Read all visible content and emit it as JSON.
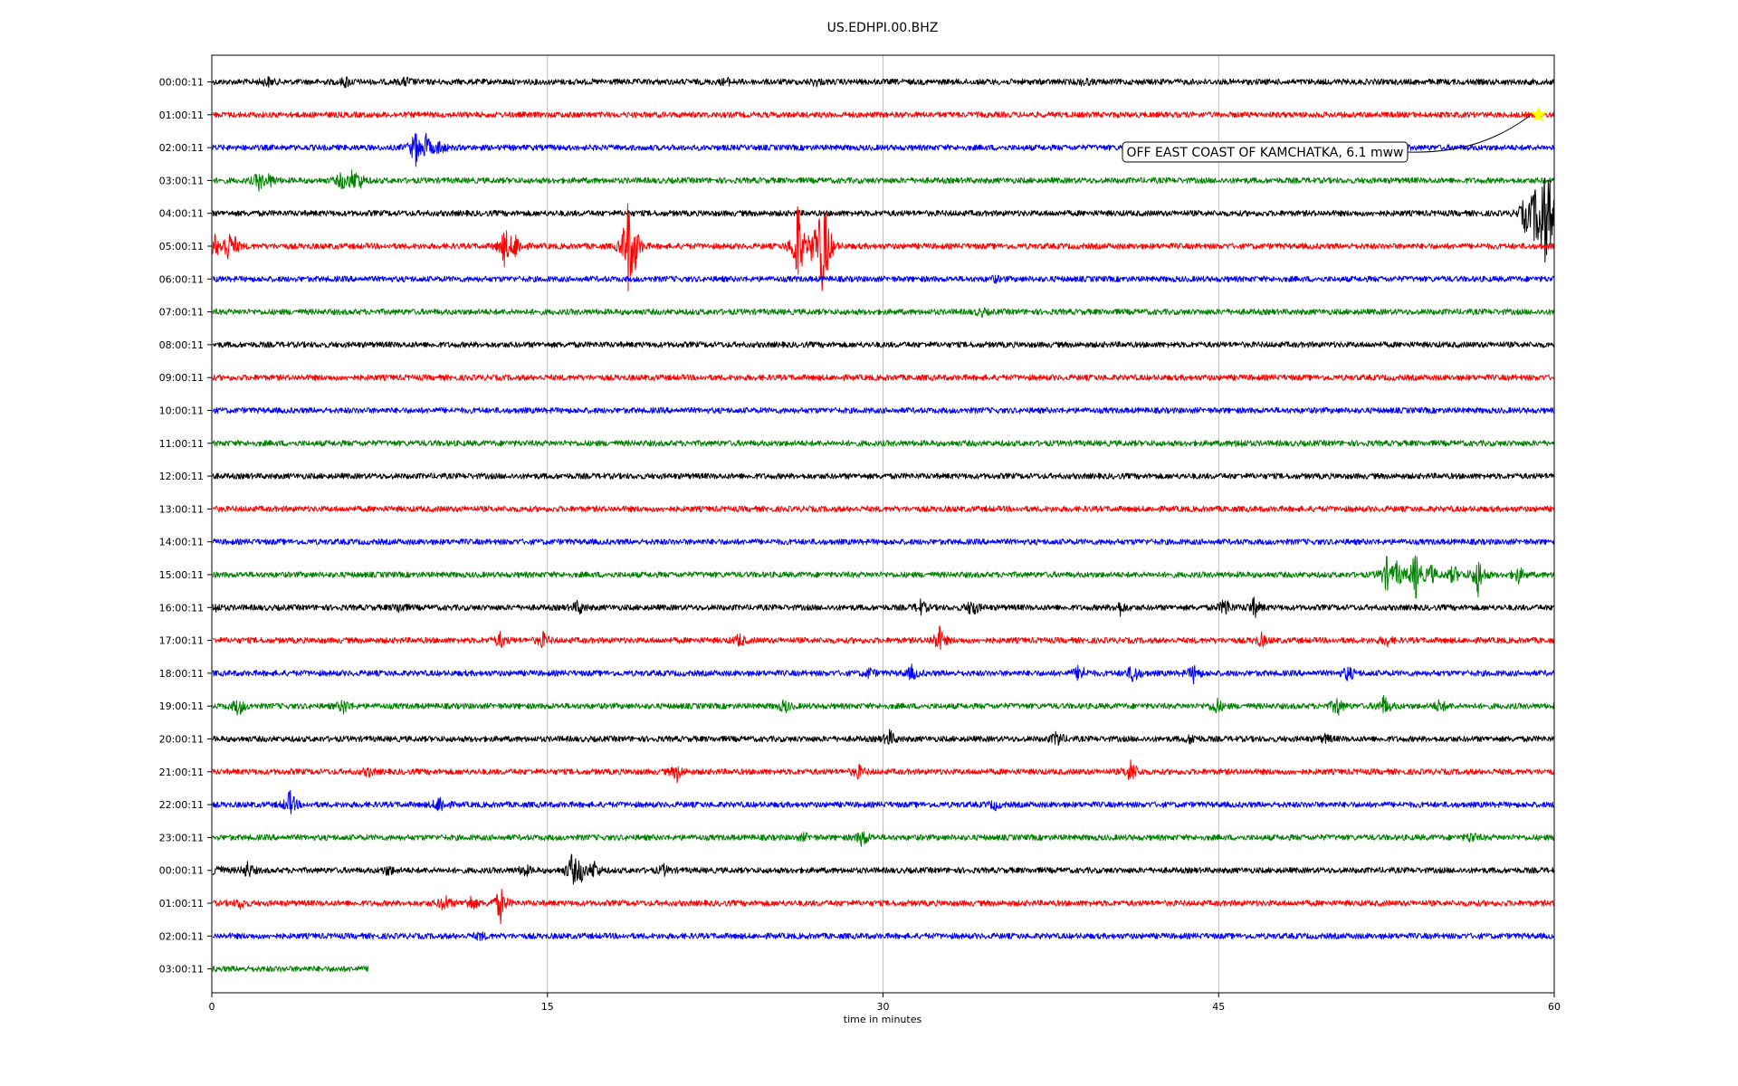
{
  "chart_data": {
    "type": "line",
    "title": "US.EDHPI.00.BHZ",
    "xlabel": "time in minutes",
    "xlim": [
      0,
      60
    ],
    "xticks": [
      "0",
      "15",
      "30",
      "45",
      "60"
    ],
    "grid": "vertical",
    "colors": [
      "#000000",
      "#ff0000",
      "#0000ff",
      "#008000"
    ],
    "rows": [
      {
        "label": "00:00:11",
        "color": "#000000",
        "end": 60,
        "events": [
          [
            2.5,
            0.5
          ],
          [
            6,
            0.6
          ],
          [
            8.7,
            0.5
          ],
          [
            23,
            0.4
          ],
          [
            27,
            0.4
          ],
          [
            39,
            0.4
          ]
        ]
      },
      {
        "label": "01:00:11",
        "color": "#ff0000",
        "end": 60,
        "events": []
      },
      {
        "label": "02:00:11",
        "color": "#0000ff",
        "end": 60,
        "events": [
          [
            9.1,
            2.2
          ],
          [
            9.6,
            1.4
          ],
          [
            10.2,
            0.8
          ]
        ]
      },
      {
        "label": "03:00:11",
        "color": "#008000",
        "end": 60,
        "events": [
          [
            2.1,
            1.1
          ],
          [
            2.6,
            0.7
          ],
          [
            5.8,
            1.0
          ],
          [
            6.3,
            1.1
          ],
          [
            6.6,
            0.8
          ]
        ]
      },
      {
        "label": "04:00:11",
        "color": "#000000",
        "end": 60,
        "events": [
          [
            58.7,
            2.2
          ],
          [
            59.1,
            2.0
          ],
          [
            59.4,
            4.5
          ],
          [
            59.6,
            3.5
          ],
          [
            59.8,
            3.2
          ]
        ]
      },
      {
        "label": "05:00:11",
        "color": "#ff0000",
        "end": 60,
        "events": [
          [
            0.1,
            1.6
          ],
          [
            0.7,
            1.8
          ],
          [
            1.0,
            0.9
          ],
          [
            13.1,
            2.5
          ],
          [
            13.6,
            1.5
          ],
          [
            18.6,
            6.0
          ],
          [
            18.9,
            2.6
          ],
          [
            26.2,
            6.0
          ],
          [
            26.9,
            2.0
          ],
          [
            27.3,
            6.0
          ],
          [
            27.5,
            2.0
          ]
        ]
      },
      {
        "label": "06:00:11",
        "color": "#0000ff",
        "end": 60,
        "events": [
          [
            35,
            0.3
          ]
        ]
      },
      {
        "label": "07:00:11",
        "color": "#008000",
        "end": 60,
        "events": [
          [
            34.4,
            0.4
          ]
        ]
      },
      {
        "label": "08:00:11",
        "color": "#000000",
        "end": 60,
        "events": []
      },
      {
        "label": "09:00:11",
        "color": "#ff0000",
        "end": 60,
        "events": []
      },
      {
        "label": "10:00:11",
        "color": "#0000ff",
        "end": 60,
        "events": []
      },
      {
        "label": "11:00:11",
        "color": "#008000",
        "end": 60,
        "events": [
          [
            46,
            0.3
          ]
        ]
      },
      {
        "label": "12:00:11",
        "color": "#000000",
        "end": 60,
        "events": []
      },
      {
        "label": "13:00:11",
        "color": "#ff0000",
        "end": 60,
        "events": []
      },
      {
        "label": "14:00:11",
        "color": "#0000ff",
        "end": 60,
        "events": []
      },
      {
        "label": "15:00:11",
        "color": "#008000",
        "end": 60,
        "events": [
          [
            52.5,
            2.0
          ],
          [
            53,
            1.6
          ],
          [
            53.8,
            3.2
          ],
          [
            54.5,
            1.2
          ],
          [
            55.5,
            1.2
          ],
          [
            56.6,
            2.6
          ],
          [
            58.4,
            1.0
          ]
        ]
      },
      {
        "label": "16:00:11",
        "color": "#000000",
        "end": 60,
        "events": [
          [
            0.1,
            0.6
          ],
          [
            8.4,
            0.6
          ],
          [
            16.4,
            0.9
          ],
          [
            31.7,
            0.9
          ],
          [
            34,
            1.2
          ],
          [
            40.6,
            0.8
          ],
          [
            45.3,
            1.2
          ],
          [
            46.6,
            1.2
          ]
        ]
      },
      {
        "label": "17:00:11",
        "color": "#ff0000",
        "end": 60,
        "events": [
          [
            12.9,
            0.9
          ],
          [
            14.8,
            0.9
          ],
          [
            23.6,
            0.8
          ],
          [
            32.5,
            1.8
          ],
          [
            46.9,
            0.8
          ],
          [
            52.5,
            0.6
          ]
        ]
      },
      {
        "label": "18:00:11",
        "color": "#0000ff",
        "end": 60,
        "events": [
          [
            29.4,
            0.6
          ],
          [
            31.3,
            0.9
          ],
          [
            38.8,
            1.2
          ],
          [
            41.2,
            1.3
          ],
          [
            43.9,
            1.1
          ],
          [
            50.8,
            1.0
          ]
        ]
      },
      {
        "label": "19:00:11",
        "color": "#008000",
        "end": 60,
        "events": [
          [
            1.2,
            1.2
          ],
          [
            5.9,
            0.9
          ],
          [
            25.6,
            0.8
          ],
          [
            44.9,
            1.0
          ],
          [
            50.3,
            1.2
          ],
          [
            52.4,
            1.3
          ],
          [
            54.9,
            0.8
          ]
        ]
      },
      {
        "label": "20:00:11",
        "color": "#000000",
        "end": 60,
        "events": [
          [
            30.3,
            1.0
          ],
          [
            37.8,
            1.0
          ],
          [
            43.8,
            0.6
          ],
          [
            49.8,
            0.5
          ]
        ]
      },
      {
        "label": "21:00:11",
        "color": "#ff0000",
        "end": 60,
        "events": [
          [
            7,
            0.5
          ],
          [
            20.8,
            1.1
          ],
          [
            28.9,
            0.8
          ],
          [
            41.1,
            1.6
          ]
        ]
      },
      {
        "label": "22:00:11",
        "color": "#0000ff",
        "end": 60,
        "events": [
          [
            3.5,
            1.7
          ],
          [
            10.2,
            1.2
          ],
          [
            35,
            0.5
          ]
        ]
      },
      {
        "label": "23:00:11",
        "color": "#008000",
        "end": 60,
        "events": [
          [
            26.5,
            0.4
          ],
          [
            29.1,
            1.2
          ],
          [
            56.3,
            0.6
          ]
        ]
      },
      {
        "label": "00:00:11",
        "color": "#000000",
        "end": 60,
        "events": [
          [
            0.2,
            0.9
          ],
          [
            1.6,
            1.0
          ],
          [
            7.9,
            0.6
          ],
          [
            14,
            0.7
          ],
          [
            16.1,
            2.0
          ],
          [
            16.5,
            1.2
          ],
          [
            17.1,
            1.1
          ],
          [
            20.2,
            0.6
          ]
        ]
      },
      {
        "label": "01:00:11",
        "color": "#ff0000",
        "end": 60,
        "events": [
          [
            1.3,
            0.6
          ],
          [
            10.4,
            1.1
          ],
          [
            11.6,
            0.9
          ],
          [
            12.9,
            2.3
          ]
        ]
      },
      {
        "label": "02:00:11",
        "color": "#0000ff",
        "end": 60,
        "events": [
          [
            12,
            0.4
          ]
        ]
      },
      {
        "label": "03:00:11",
        "color": "#008000",
        "end": 7,
        "events": []
      }
    ],
    "annotation": {
      "text": "OFF EAST COAST OF KAMCHATKA, 6.1 mww",
      "row": 1,
      "minute": 59.3,
      "marker": "star",
      "marker_color": "#ffff00"
    }
  }
}
